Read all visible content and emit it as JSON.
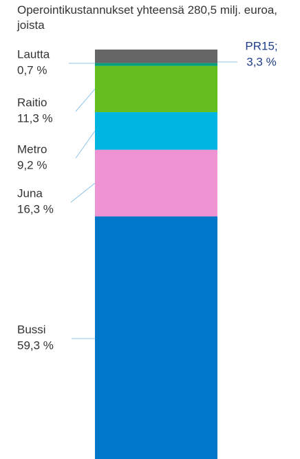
{
  "chart_data": {
    "type": "stacked-bar",
    "title": "Operointikustannukset yhteensä 280,5 milj. euroa, joista",
    "categories": [
      "Bussi",
      "Juna",
      "Metro",
      "Raitio",
      "Lautta",
      "PR15;"
    ],
    "values": [
      59.3,
      16.3,
      9.2,
      11.3,
      0.7,
      3.3
    ],
    "value_labels": [
      "59,3 %",
      "16,3 %",
      "9,2 %",
      "11,3 %",
      "0,7 %",
      "3,3 %"
    ],
    "colors": [
      "#0077c8",
      "#f093d2",
      "#00b5e2",
      "#64be1e",
      "#00a07a",
      "#666666"
    ]
  }
}
